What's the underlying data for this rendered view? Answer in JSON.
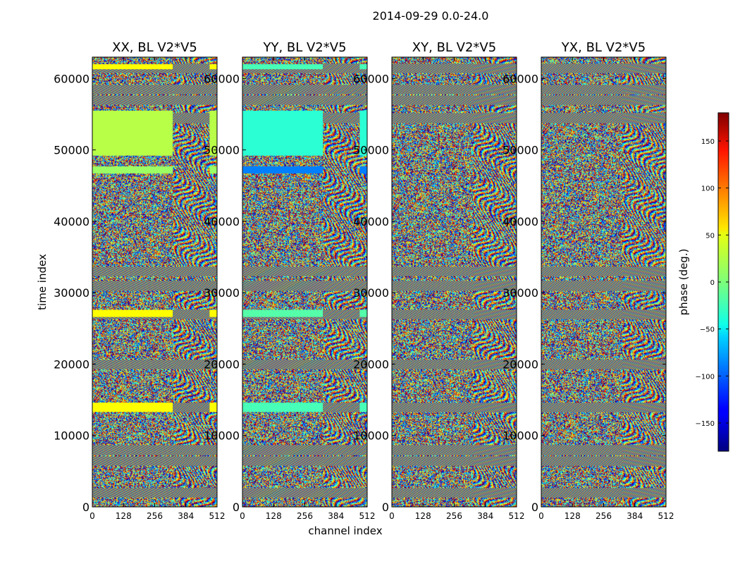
{
  "chart_data": {
    "type": "heatmap",
    "title": "2014-09-29 0.0-24.0",
    "xlabel": "channel index",
    "ylabel": "time index",
    "xlim": [
      0,
      512
    ],
    "ylim": [
      0,
      63000
    ],
    "x_ticks": [
      0,
      128,
      256,
      384,
      512
    ],
    "y_ticks": [
      0,
      10000,
      20000,
      30000,
      40000,
      50000,
      60000
    ],
    "colormap": "jet",
    "colorbar": {
      "label": "phase (deg.)",
      "range": [
        -180,
        180
      ],
      "ticks": [
        -150,
        -100,
        -50,
        0,
        50,
        100,
        150
      ],
      "tick_labels": [
        "−150",
        "−100",
        "−50",
        "0",
        "50",
        "100",
        "150"
      ]
    },
    "panels": [
      {
        "title": "XX, BL V2*V5",
        "polarization": "XX"
      },
      {
        "title": "YY, BL V2*V5",
        "polarization": "YY"
      },
      {
        "title": "XY, BL V2*V5",
        "polarization": "XY"
      },
      {
        "title": "YX, BL V2*V5",
        "polarization": "YX"
      }
    ],
    "fringe_bands_time_index": [
      2000,
      6500,
      8000,
      14000,
      20000,
      27000,
      31000,
      33000,
      54500,
      57000,
      58500,
      61500
    ],
    "uniform_phase_blocks": [
      {
        "panel": "XX",
        "time_range": [
          13300,
          14600
        ],
        "channel_range": [
          0,
          330
        ],
        "phase": 45
      },
      {
        "panel": "XX",
        "time_range": [
          26600,
          27600
        ],
        "channel_range": [
          0,
          330
        ],
        "phase": 45
      },
      {
        "panel": "XX",
        "time_range": [
          46700,
          47700
        ],
        "channel_range": [
          0,
          330
        ],
        "phase": 10
      },
      {
        "panel": "XX",
        "time_range": [
          49200,
          55500
        ],
        "channel_range": [
          0,
          330
        ],
        "phase": 20
      },
      {
        "panel": "XX",
        "time_range": [
          61300,
          62000
        ],
        "channel_range": [
          0,
          330
        ],
        "phase": 45
      },
      {
        "panel": "YY",
        "time_range": [
          13300,
          14600
        ],
        "channel_range": [
          0,
          330
        ],
        "phase": -20
      },
      {
        "panel": "YY",
        "time_range": [
          26600,
          27600
        ],
        "channel_range": [
          0,
          330
        ],
        "phase": -15
      },
      {
        "panel": "YY",
        "time_range": [
          46700,
          47700
        ],
        "channel_range": [
          0,
          330
        ],
        "phase": -90
      },
      {
        "panel": "YY",
        "time_range": [
          49200,
          55500
        ],
        "channel_range": [
          0,
          330
        ],
        "phase": -30
      },
      {
        "panel": "YY",
        "time_range": [
          61300,
          62000
        ],
        "channel_range": [
          0,
          330
        ],
        "phase": -20
      }
    ]
  }
}
